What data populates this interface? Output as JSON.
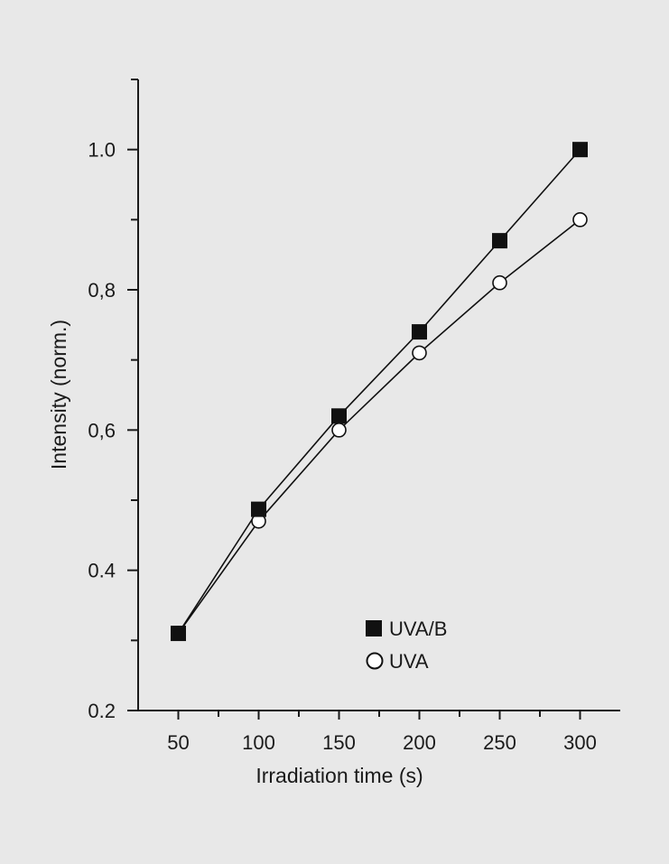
{
  "chart_data": {
    "type": "line",
    "title": "",
    "xlabel": "Irradiation time (s)",
    "ylabel": "Intensity (norm.)",
    "xlim": [
      25,
      325
    ],
    "ylim": [
      0.2,
      1.1
    ],
    "x_ticks": [
      {
        "value": 50,
        "label": "50"
      },
      {
        "value": 100,
        "label": "100"
      },
      {
        "value": 150,
        "label": "150"
      },
      {
        "value": 200,
        "label": "200"
      },
      {
        "value": 250,
        "label": "250"
      },
      {
        "value": 300,
        "label": "300"
      }
    ],
    "x_minor_ticks": [
      75,
      125,
      175,
      225,
      275
    ],
    "y_ticks": [
      {
        "value": 0.2,
        "label": "0.2"
      },
      {
        "value": 0.4,
        "label": "0.4"
      },
      {
        "value": 0.6,
        "label": "0,6"
      },
      {
        "value": 0.8,
        "label": "0,8"
      },
      {
        "value": 1.0,
        "label": "1.0"
      }
    ],
    "y_minor_ticks": [
      0.3,
      0.5,
      0.7,
      0.9,
      1.1
    ],
    "grid": false,
    "legend_position": "lower-right",
    "series": [
      {
        "name": "UVA/B",
        "marker": "filled-square",
        "color": "#111111",
        "x": [
          50,
          100,
          150,
          200,
          250,
          300
        ],
        "y": [
          0.31,
          0.487,
          0.62,
          0.74,
          0.87,
          1.0
        ]
      },
      {
        "name": "UVA",
        "marker": "open-circle",
        "color": "#111111",
        "x": [
          50,
          100,
          150,
          200,
          250,
          300
        ],
        "y": [
          0.31,
          0.47,
          0.6,
          0.71,
          0.81,
          0.9
        ]
      }
    ]
  }
}
